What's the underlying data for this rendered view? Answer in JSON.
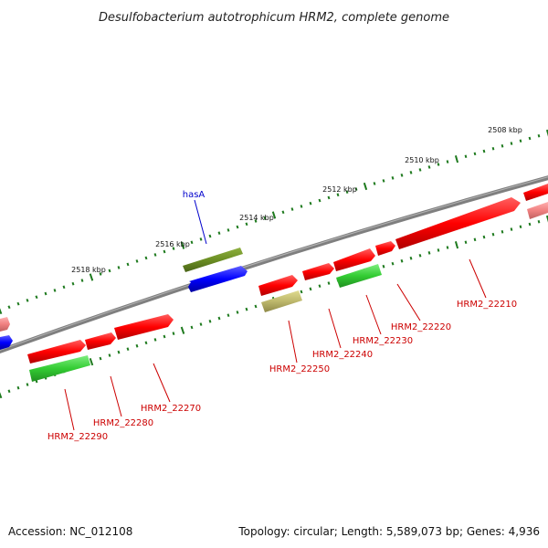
{
  "title": "Desulfobacterium autotrophicum HRM2, complete genome",
  "footer": {
    "accession": "Accession: NC_012108",
    "summary": "Topology: circular; Length: 5,589,073 bp; Genes: 4,936"
  },
  "colors": {
    "backbone": "#808080",
    "tick": "#1e7a1e",
    "label_red": "#cc0000",
    "label_blue": "#0000cc",
    "gene_red": "#ff0000",
    "gene_pink": "#f08080",
    "gene_green": "#33cc33",
    "gene_olive": "#6b8e23",
    "gene_khaki": "#bdb76b",
    "gene_blue": "#0000ff"
  },
  "ticks_outer": [
    "2508 kbp",
    "2510 kbp",
    "2512 kbp",
    "2514 kbp",
    "2516 kbp",
    "2518 kbp"
  ],
  "gene_labels": [
    "hasA",
    "HRM2_22210",
    "HRM2_22220",
    "HRM2_22230",
    "HRM2_22240",
    "HRM2_22250",
    "HRM2_22270",
    "HRM2_22280",
    "HRM2_22290"
  ]
}
